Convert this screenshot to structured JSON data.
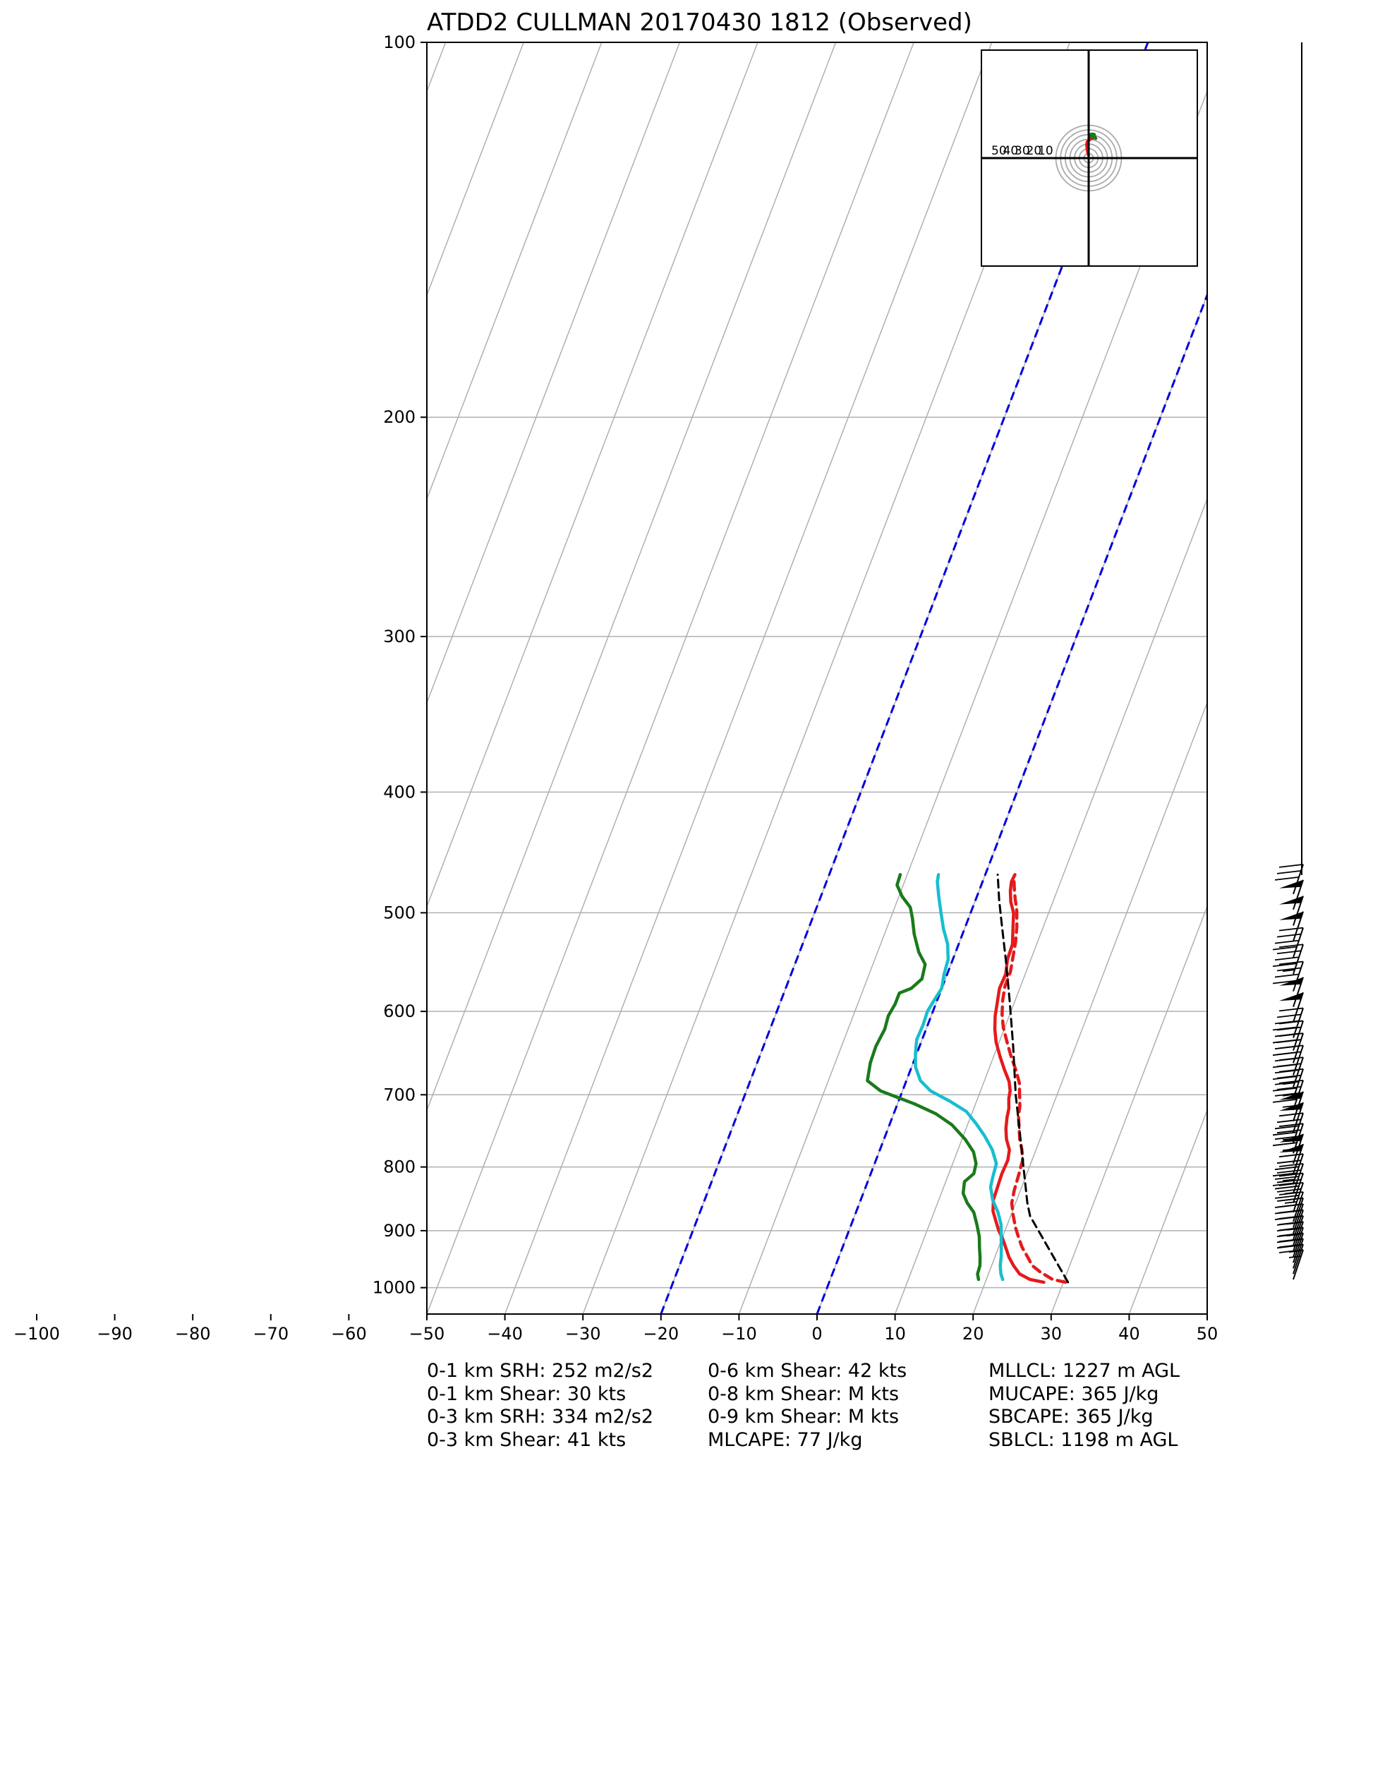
{
  "chart_data": {
    "type": "line",
    "title": "ATDD2 CULLMAN 20170430 1812   (Observed)",
    "xlim": [
      -100,
      50
    ],
    "ylim": [
      1050,
      100
    ],
    "y_scale": "log",
    "y_ticks": [
      100,
      200,
      300,
      400,
      500,
      600,
      700,
      800,
      900,
      1000
    ],
    "x_ticks": [
      -100,
      -90,
      -80,
      -70,
      -60,
      -50,
      -40,
      -30,
      -20,
      -10,
      0,
      10,
      20,
      30,
      40,
      50
    ],
    "x_tick_labels": [
      "−100",
      "−90",
      "−80",
      "−70",
      "−60",
      "−50",
      "−40",
      "−30",
      "−20",
      "−10",
      "0",
      "10",
      "20",
      "30",
      "40",
      "50"
    ],
    "grid": true,
    "colors": {
      "temperature": "#e41a1c",
      "virtual_temperature": "#e41a1c",
      "dewpoint": "#1a7a1a",
      "wetbulb": "#17becf",
      "parcel": "#000000",
      "reference_isotherms": "#0000dd",
      "grid": "#b0b0b0"
    },
    "reference_isotherms_skewed": [
      -20,
      0
    ],
    "series": [
      {
        "kind": "temperature",
        "style": "solid",
        "points": [
          [
            27.5,
            990
          ],
          [
            25.6,
            985
          ],
          [
            24.0,
            975
          ],
          [
            22.8,
            960
          ],
          [
            21.8,
            945
          ],
          [
            21.0,
            930
          ],
          [
            20.0,
            912
          ],
          [
            19.2,
            900
          ],
          [
            18.4,
            885
          ],
          [
            17.5,
            868
          ],
          [
            17.0,
            850
          ],
          [
            16.9,
            830
          ],
          [
            16.8,
            810
          ],
          [
            16.9,
            790
          ],
          [
            16.6,
            775
          ],
          [
            15.7,
            760
          ],
          [
            15.1,
            745
          ],
          [
            14.7,
            730
          ],
          [
            14.5,
            718
          ],
          [
            14.0,
            705
          ],
          [
            13.8,
            695
          ],
          [
            13.2,
            683
          ],
          [
            12.0,
            668
          ],
          [
            10.8,
            652
          ],
          [
            9.6,
            635
          ],
          [
            8.8,
            620
          ],
          [
            8.2,
            605
          ],
          [
            7.8,
            590
          ],
          [
            7.4,
            575
          ],
          [
            7.5,
            560
          ],
          [
            7.0,
            545
          ],
          [
            6.9,
            530
          ],
          [
            6.2,
            515
          ],
          [
            5.5,
            500
          ],
          [
            4.6,
            490
          ],
          [
            4.0,
            480
          ],
          [
            3.7,
            472
          ],
          [
            3.8,
            466
          ]
        ]
      },
      {
        "kind": "virtual_temperature",
        "style": "dashed",
        "points": [
          [
            30.3,
            990
          ],
          [
            28.5,
            985
          ],
          [
            26.6,
            972
          ],
          [
            25.2,
            960
          ],
          [
            24.2,
            945
          ],
          [
            23.0,
            928
          ],
          [
            22.0,
            910
          ],
          [
            21.2,
            895
          ],
          [
            20.3,
            875
          ],
          [
            19.5,
            855
          ],
          [
            19.2,
            835
          ],
          [
            19.0,
            810
          ],
          [
            18.8,
            790
          ],
          [
            18.2,
            775
          ],
          [
            17.4,
            760
          ],
          [
            16.8,
            745
          ],
          [
            16.1,
            728
          ],
          [
            15.8,
            715
          ],
          [
            15.2,
            700
          ],
          [
            14.6,
            685
          ],
          [
            13.6,
            670
          ],
          [
            12.3,
            653
          ],
          [
            11.0,
            635
          ],
          [
            9.8,
            618
          ],
          [
            9.0,
            603
          ],
          [
            8.4,
            588
          ],
          [
            8.0,
            573
          ],
          [
            8.0,
            558
          ],
          [
            7.6,
            543
          ],
          [
            7.2,
            528
          ],
          [
            6.6,
            513
          ],
          [
            5.8,
            498
          ],
          [
            5.0,
            487
          ],
          [
            4.4,
            478
          ],
          [
            3.9,
            470
          ]
        ]
      },
      {
        "kind": "dewpoint",
        "style": "solid",
        "points": [
          [
            19.0,
            985
          ],
          [
            18.6,
            975
          ],
          [
            18.5,
            960
          ],
          [
            18.1,
            945
          ],
          [
            17.6,
            930
          ],
          [
            17.0,
            910
          ],
          [
            16.1,
            890
          ],
          [
            15.1,
            870
          ],
          [
            13.8,
            855
          ],
          [
            12.8,
            840
          ],
          [
            12.4,
            822
          ],
          [
            13.2,
            810
          ],
          [
            13.0,
            795
          ],
          [
            12.1,
            778
          ],
          [
            10.4,
            760
          ],
          [
            8.0,
            740
          ],
          [
            5.4,
            725
          ],
          [
            2.2,
            712
          ],
          [
            -2.8,
            695
          ],
          [
            -5.0,
            682
          ],
          [
            -5.5,
            660
          ],
          [
            -5.6,
            640
          ],
          [
            -5.3,
            620
          ],
          [
            -5.5,
            605
          ],
          [
            -5.2,
            592
          ],
          [
            -5.2,
            580
          ],
          [
            -3.9,
            575
          ],
          [
            -3.0,
            565
          ],
          [
            -3.3,
            550
          ],
          [
            -4.7,
            538
          ],
          [
            -6.2,
            520
          ],
          [
            -7.2,
            505
          ],
          [
            -8.0,
            495
          ],
          [
            -9.6,
            485
          ],
          [
            -10.8,
            475
          ],
          [
            -10.9,
            466
          ]
        ]
      },
      {
        "kind": "wetbulb",
        "style": "solid",
        "points": [
          [
            22.1,
            985
          ],
          [
            21.6,
            975
          ],
          [
            21.1,
            960
          ],
          [
            20.8,
            945
          ],
          [
            20.4,
            930
          ],
          [
            19.8,
            910
          ],
          [
            19.2,
            890
          ],
          [
            18.2,
            870
          ],
          [
            16.9,
            850
          ],
          [
            16.0,
            830
          ],
          [
            15.8,
            815
          ],
          [
            15.6,
            795
          ],
          [
            14.4,
            775
          ],
          [
            12.7,
            755
          ],
          [
            11.0,
            738
          ],
          [
            9.2,
            722
          ],
          [
            6.5,
            708
          ],
          [
            3.6,
            695
          ],
          [
            1.8,
            682
          ],
          [
            0.5,
            665
          ],
          [
            -0.2,
            648
          ],
          [
            -0.7,
            632
          ],
          [
            -0.6,
            615
          ],
          [
            -0.7,
            600
          ],
          [
            -0.4,
            588
          ],
          [
            0.0,
            575
          ],
          [
            -0.4,
            560
          ],
          [
            -0.6,
            545
          ],
          [
            -1.4,
            530
          ],
          [
            -2.7,
            515
          ],
          [
            -3.8,
            500
          ],
          [
            -4.9,
            485
          ],
          [
            -5.8,
            472
          ],
          [
            -6.0,
            466
          ]
        ]
      },
      {
        "kind": "parcel",
        "style": "dashed",
        "points": [
          [
            30.6,
            990
          ],
          [
            22.5,
            876
          ],
          [
            21.5,
            855
          ],
          [
            17.5,
            760
          ],
          [
            14.7,
            700
          ],
          [
            12.0,
            640
          ],
          [
            9.4,
            590
          ],
          [
            7.1,
            550
          ],
          [
            4.5,
            510
          ],
          [
            3.0,
            488
          ],
          [
            1.6,
            466
          ]
        ]
      }
    ],
    "wind_barbs": [
      {
        "p": 985,
        "speed_kt": 15
      },
      {
        "p": 975,
        "speed_kt": 15
      },
      {
        "p": 965,
        "speed_kt": 20
      },
      {
        "p": 955,
        "speed_kt": 20
      },
      {
        "p": 945,
        "speed_kt": 20
      },
      {
        "p": 935,
        "speed_kt": 25
      },
      {
        "p": 925,
        "speed_kt": 25
      },
      {
        "p": 915,
        "speed_kt": 25
      },
      {
        "p": 905,
        "speed_kt": 30
      },
      {
        "p": 895,
        "speed_kt": 30
      },
      {
        "p": 885,
        "speed_kt": 30
      },
      {
        "p": 870,
        "speed_kt": 35
      },
      {
        "p": 855,
        "speed_kt": 35
      },
      {
        "p": 840,
        "speed_kt": 40
      },
      {
        "p": 825,
        "speed_kt": 45
      },
      {
        "p": 810,
        "speed_kt": 50
      },
      {
        "p": 795,
        "speed_kt": 50
      },
      {
        "p": 780,
        "speed_kt": 45
      },
      {
        "p": 765,
        "speed_kt": 45
      },
      {
        "p": 750,
        "speed_kt": 50
      },
      {
        "p": 735,
        "speed_kt": 50
      },
      {
        "p": 720,
        "speed_kt": 45
      },
      {
        "p": 705,
        "speed_kt": 45
      },
      {
        "p": 690,
        "speed_kt": 45
      },
      {
        "p": 675,
        "speed_kt": 40
      },
      {
        "p": 660,
        "speed_kt": 40
      },
      {
        "p": 645,
        "speed_kt": 40
      },
      {
        "p": 630,
        "speed_kt": 40
      },
      {
        "p": 612,
        "speed_kt": 50
      },
      {
        "p": 595,
        "speed_kt": 50
      },
      {
        "p": 578,
        "speed_kt": 40
      },
      {
        "p": 560,
        "speed_kt": 45
      },
      {
        "p": 543,
        "speed_kt": 40
      },
      {
        "p": 527,
        "speed_kt": 50
      },
      {
        "p": 512,
        "speed_kt": 50
      },
      {
        "p": 497,
        "speed_kt": 50
      },
      {
        "p": 483,
        "speed_kt": 30
      }
    ],
    "hodograph": {
      "ring_labels": [
        "50",
        "40",
        "30",
        "20",
        "10"
      ],
      "rings_kt": [
        10,
        20,
        30,
        40,
        50,
        60,
        70
      ],
      "range_kt": 60,
      "traces": [
        {
          "kind": "hodograph_red",
          "points": [
            [
              0,
              5
            ],
            [
              -2,
              12
            ],
            [
              -3,
              18
            ],
            [
              -4,
              28
            ],
            [
              -3,
              35
            ],
            [
              3,
              40
            ],
            [
              6,
              42
            ],
            [
              10,
              43
            ],
            [
              12,
              47
            ],
            [
              9,
              48
            ],
            [
              6,
              46
            ]
          ]
        },
        {
          "kind": "hodograph_green",
          "points": [
            [
              6,
              47
            ],
            [
              9,
              45
            ],
            [
              13,
              44
            ],
            [
              15,
              42
            ],
            [
              14,
              44
            ],
            [
              11,
              45
            ],
            [
              7,
              46
            ],
            [
              3,
              47
            ],
            [
              5,
              50
            ],
            [
              7,
              51
            ],
            [
              10,
              51
            ],
            [
              12,
              50
            ],
            [
              9,
              49
            ],
            [
              5,
              50
            ],
            [
              3,
              51
            ],
            [
              2,
              52
            ]
          ]
        }
      ]
    }
  },
  "stats": {
    "col1": [
      "0-1 km SRH: 252 m2/s2",
      "0-1 km Shear: 30 kts",
      "0-3 km SRH: 334 m2/s2",
      "0-3 km Shear: 41 kts"
    ],
    "col2": [
      "0-6 km Shear: 42 kts",
      "0-8 km Shear: M kts",
      "0-9 km Shear: M kts",
      "MLCAPE: 77 J/kg"
    ],
    "col3": [
      "MLLCL: 1227 m AGL",
      "MUCAPE: 365 J/kg",
      "SBCAPE: 365 J/kg",
      "SBLCL: 1198 m AGL"
    ]
  }
}
